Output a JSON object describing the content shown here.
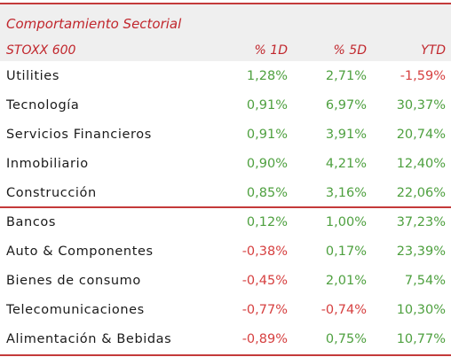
{
  "table": {
    "title": "Comportamiento Sectorial",
    "headers": [
      "STOXX 600",
      "% 1D",
      "% 5D",
      "YTD"
    ],
    "colors": {
      "accent": "#c1272d",
      "positive": "#4ea03f",
      "negative": "#d64040",
      "header_bg": "#efefef"
    },
    "rows": [
      {
        "sector": "Utilities",
        "d1": "1,28%",
        "d5": "2,71%",
        "ytd": "-1,59%"
      },
      {
        "sector": "Tecnología",
        "d1": "0,91%",
        "d5": "6,97%",
        "ytd": "30,37%"
      },
      {
        "sector": "Servicios Financieros",
        "d1": "0,91%",
        "d5": "3,91%",
        "ytd": "20,74%"
      },
      {
        "sector": "Inmobiliario",
        "d1": "0,90%",
        "d5": "4,21%",
        "ytd": "12,40%"
      },
      {
        "sector": "Construcción",
        "d1": "0,85%",
        "d5": "3,16%",
        "ytd": "22,06%"
      },
      {
        "sector": "Bancos",
        "d1": "0,12%",
        "d5": "1,00%",
        "ytd": "37,23%"
      },
      {
        "sector": "Auto & Componentes",
        "d1": "-0,38%",
        "d5": "0,17%",
        "ytd": "23,39%"
      },
      {
        "sector": "Bienes de consumo",
        "d1": "-0,45%",
        "d5": "2,01%",
        "ytd": "7,54%"
      },
      {
        "sector": "Telecomunicaciones",
        "d1": "-0,77%",
        "d5": "-0,74%",
        "ytd": "10,30%"
      },
      {
        "sector": "Alimentación & Bebidas",
        "d1": "-0,89%",
        "d5": "0,75%",
        "ytd": "10,77%"
      }
    ]
  }
}
